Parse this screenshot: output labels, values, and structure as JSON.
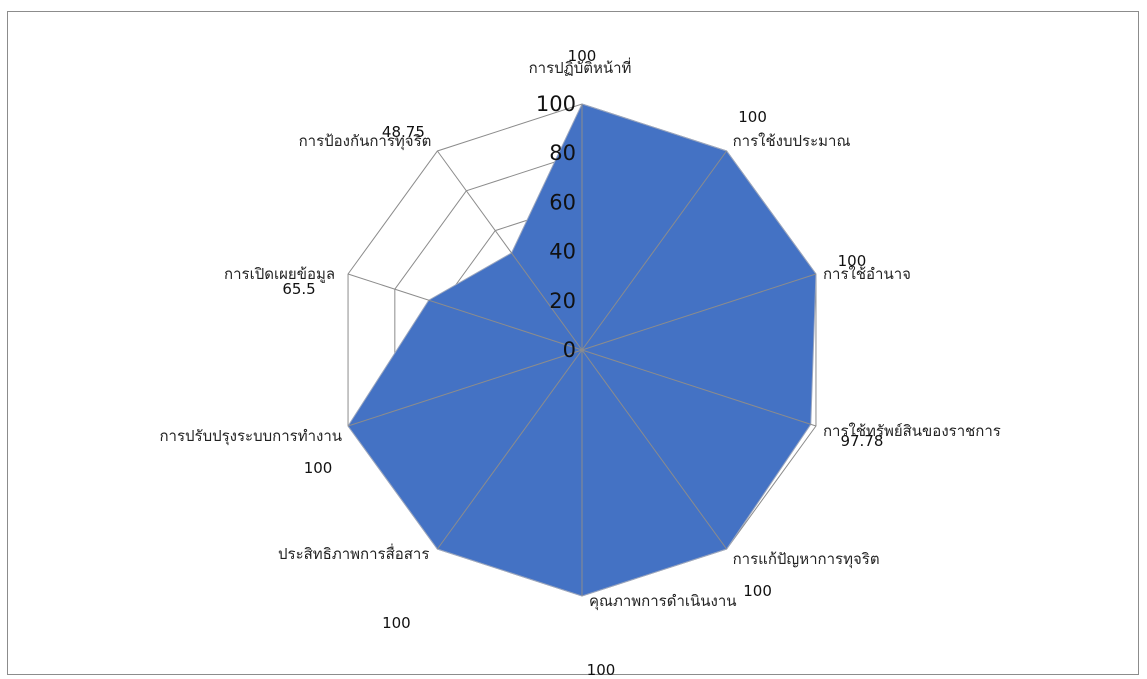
{
  "chart_data": {
    "type": "radar",
    "title": "",
    "categories": [
      "การปฏิบัติหน้าที่",
      "การใช้งบประมาณ",
      "การใช้อำนาจ",
      "การใช้ทรัพย์สินของราชการ",
      "การแก้ปัญหาการทุจริต",
      "คุณภาพการดำเนินงาน",
      "ประสิทธิภาพการสื่อสาร",
      "การปรับปรุงระบบการทำงาน",
      "การเปิดเผยข้อมูล",
      "การป้องกันการทุจริต"
    ],
    "series": [
      {
        "values": [
          100,
          100,
          100,
          97.78,
          100,
          100,
          100,
          100,
          65.5,
          48.75
        ]
      }
    ],
    "data_labels": [
      "100",
      "100",
      "100",
      "97.78",
      "100",
      "100",
      "100",
      "100",
      "65.5",
      "48.75"
    ],
    "ticks": [
      "0",
      "20",
      "40",
      "60",
      "80",
      "100"
    ],
    "rlim": [
      0,
      100
    ],
    "grid": true,
    "legend": "none",
    "colors": {
      "fill": "#4472C4",
      "grid": "#8c8c8c",
      "fill_edge": "#9aa6bf"
    }
  }
}
